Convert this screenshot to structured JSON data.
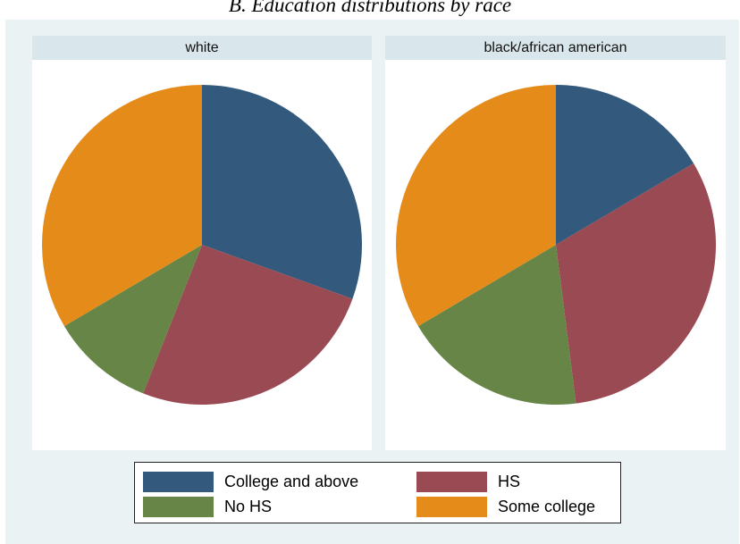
{
  "figure": {
    "title": "B. Education distributions by race"
  },
  "colors": {
    "College and above": "#335a7c",
    "HS": "#9a4a52",
    "No HS": "#668546",
    "Some college": "#e58b1a"
  },
  "legend": [
    {
      "label": "College and above",
      "color": "#335a7c"
    },
    {
      "label": "HS",
      "color": "#9a4a52"
    },
    {
      "label": "No HS",
      "color": "#668546"
    },
    {
      "label": "Some college",
      "color": "#e58b1a"
    }
  ],
  "chart_data": [
    {
      "type": "pie",
      "title": "white",
      "categories": [
        "College and above",
        "HS",
        "No HS",
        "Some college"
      ],
      "values": [
        30.5,
        25.5,
        10.5,
        33.5
      ]
    },
    {
      "type": "pie",
      "title": "black/african american",
      "categories": [
        "College and above",
        "HS",
        "No HS",
        "Some college"
      ],
      "values": [
        16.5,
        31.5,
        18.5,
        33.5
      ]
    }
  ]
}
